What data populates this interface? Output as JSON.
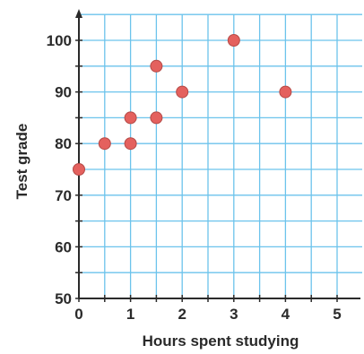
{
  "chart_data": {
    "type": "scatter",
    "xlabel": "Hours spent studying",
    "ylabel": "Test grade",
    "xlim": [
      0,
      5
    ],
    "ylim": [
      50,
      100
    ],
    "x_ticks": [
      "0",
      "1",
      "2",
      "3",
      "4",
      "5"
    ],
    "y_ticks": [
      "50",
      "60",
      "70",
      "80",
      "90",
      "100"
    ],
    "grid": true,
    "grid_minor": true,
    "points": [
      {
        "x": 0,
        "y": 75
      },
      {
        "x": 0.5,
        "y": 80
      },
      {
        "x": 1,
        "y": 80
      },
      {
        "x": 1,
        "y": 85
      },
      {
        "x": 1.5,
        "y": 85
      },
      {
        "x": 1.5,
        "y": 95
      },
      {
        "x": 2,
        "y": 90
      },
      {
        "x": 3,
        "y": 100
      },
      {
        "x": 4,
        "y": 90
      }
    ],
    "colors": {
      "grid": "#6cc3ec",
      "axis": "#2a2a2a",
      "marker_fill": "#e4615e",
      "marker_stroke": "#b44a47"
    }
  }
}
